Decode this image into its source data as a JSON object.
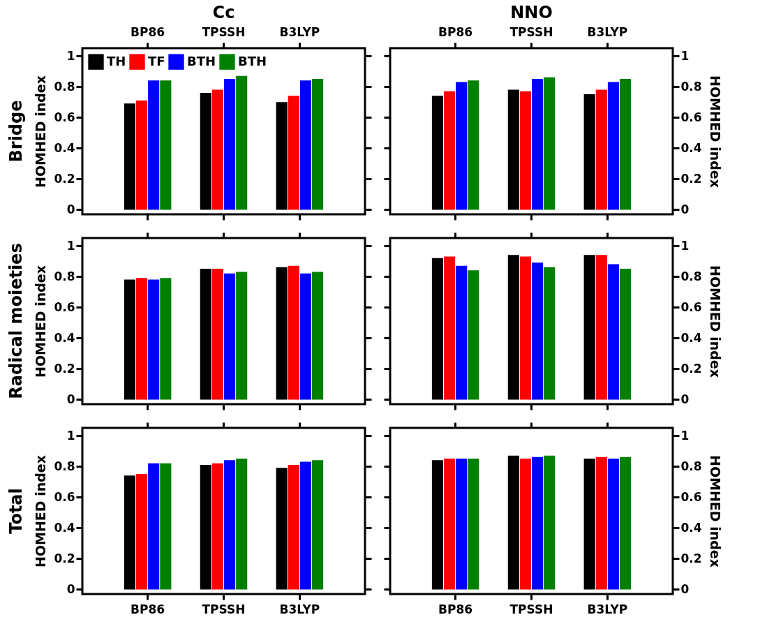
{
  "chart_data": [
    {
      "type": "bar",
      "title": "Cc",
      "ylabel": "HOMHED index",
      "annotations": [
        "Bridge"
      ],
      "categories": [
        "BP86",
        "TPSSH",
        "B3LYP"
      ],
      "ylim": [
        -0.03,
        1.05
      ],
      "yticks": [
        0,
        0.2,
        0.4,
        0.6,
        0.8,
        1
      ],
      "legend": "top left",
      "series": [
        {
          "name": "TH",
          "color": "#000000",
          "values": [
            0.69,
            0.76,
            0.7
          ]
        },
        {
          "name": "TF",
          "color": "#ff0000",
          "values": [
            0.71,
            0.78,
            0.74
          ]
        },
        {
          "name": "BTH",
          "color": "#0000ff",
          "values": [
            0.84,
            0.85,
            0.84
          ]
        },
        {
          "name": "BTH",
          "color": "#008000",
          "values": [
            0.84,
            0.87,
            0.85
          ]
        }
      ]
    },
    {
      "type": "bar",
      "title": "NNO",
      "ylabel": "HOMHED index",
      "categories": [
        "BP86",
        "TPSSH",
        "B3LYP"
      ],
      "ylim": [
        -0.03,
        1.05
      ],
      "yticks": [
        0,
        0.2,
        0.4,
        0.6,
        0.8,
        1
      ],
      "series": [
        {
          "color": "#000000",
          "values": [
            0.74,
            0.78,
            0.75
          ]
        },
        {
          "color": "#ff0000",
          "values": [
            0.77,
            0.77,
            0.78
          ]
        },
        {
          "color": "#0000ff",
          "values": [
            0.83,
            0.85,
            0.83
          ]
        },
        {
          "color": "#008000",
          "values": [
            0.84,
            0.86,
            0.85
          ]
        }
      ]
    },
    {
      "type": "bar",
      "ylabel": "HOMHED index",
      "annotations": [
        "Radical moieties"
      ],
      "categories": [
        null,
        null,
        null
      ],
      "ylim": [
        -0.03,
        1.05
      ],
      "yticks": [
        0,
        0.2,
        0.4,
        0.6,
        0.8,
        1
      ],
      "tick_labels": "y",
      "series": [
        {
          "color": "#000000",
          "values": [
            0.78,
            0.85,
            0.86
          ]
        },
        {
          "color": "#ff0000",
          "values": [
            0.79,
            0.85,
            0.87
          ]
        },
        {
          "color": "#0000ff",
          "values": [
            0.78,
            0.82,
            0.82
          ]
        },
        {
          "color": "#008000",
          "values": [
            0.79,
            0.83,
            0.83
          ]
        }
      ]
    },
    {
      "type": "bar",
      "ylabel": "HOMHED index",
      "categories": [
        null,
        null,
        null
      ],
      "ylim": [
        -0.03,
        1.05
      ],
      "yticks": [
        0,
        0.2,
        0.4,
        0.6,
        0.8,
        1
      ],
      "tick_labels": "y",
      "series": [
        {
          "color": "#000000",
          "values": [
            0.92,
            0.94,
            0.94
          ]
        },
        {
          "color": "#ff0000",
          "values": [
            0.93,
            0.93,
            0.94
          ]
        },
        {
          "color": "#0000ff",
          "values": [
            0.87,
            0.89,
            0.88
          ]
        },
        {
          "color": "#008000",
          "values": [
            0.84,
            0.86,
            0.85
          ]
        }
      ]
    },
    {
      "type": "bar",
      "ylabel": "HOMHED index",
      "annotations": [
        "Total"
      ],
      "categories": [
        "BP86",
        "TPSSH",
        "B3LYP"
      ],
      "ylim": [
        -0.03,
        1.05
      ],
      "yticks": [
        0,
        0.2,
        0.4,
        0.6,
        0.8,
        1
      ],
      "series": [
        {
          "color": "#000000",
          "values": [
            0.74,
            0.81,
            0.79
          ]
        },
        {
          "color": "#ff0000",
          "values": [
            0.75,
            0.82,
            0.81
          ]
        },
        {
          "color": "#0000ff",
          "values": [
            0.82,
            0.84,
            0.83
          ]
        },
        {
          "color": "#008000",
          "values": [
            0.82,
            0.85,
            0.84
          ]
        }
      ]
    },
    {
      "type": "bar",
      "ylabel": "HOMHED index",
      "categories": [
        "BP86",
        "TPSSH",
        "B3LYP"
      ],
      "ylim": [
        -0.03,
        1.05
      ],
      "yticks": [
        0,
        0.2,
        0.4,
        0.6,
        0.8,
        1
      ],
      "series": [
        {
          "color": "#000000",
          "values": [
            0.84,
            0.87,
            0.85
          ]
        },
        {
          "color": "#ff0000",
          "values": [
            0.85,
            0.85,
            0.86
          ]
        },
        {
          "color": "#0000ff",
          "values": [
            0.85,
            0.86,
            0.85
          ]
        },
        {
          "color": "#008000",
          "values": [
            0.85,
            0.87,
            0.86
          ]
        }
      ]
    }
  ]
}
